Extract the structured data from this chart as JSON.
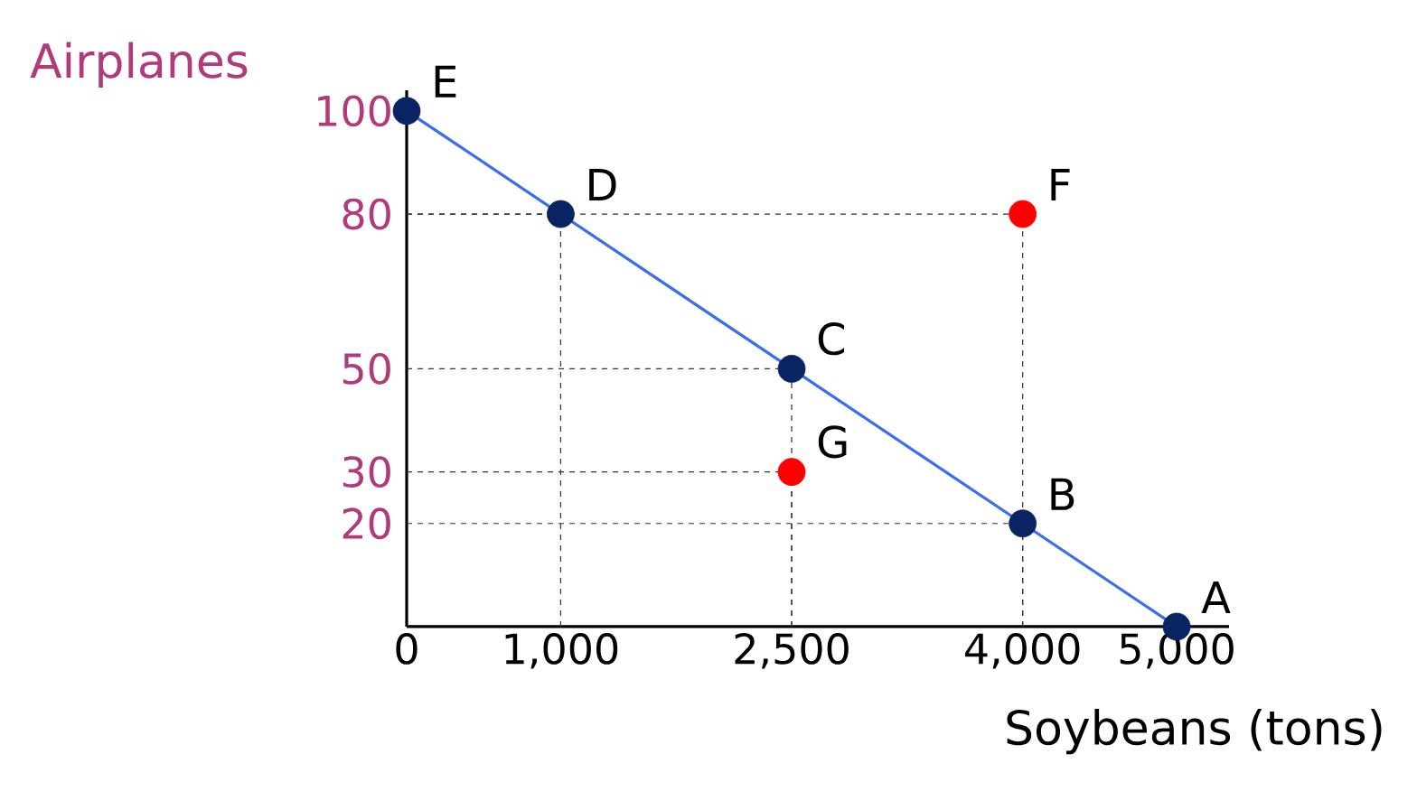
{
  "chart_data": {
    "type": "line",
    "xlabel": "Soybeans (tons)",
    "ylabel": "Airplanes",
    "xlim": [
      0,
      5340
    ],
    "ylim": [
      0,
      104
    ],
    "xticks": [
      0,
      {
        "value": 1000,
        "label": "1,000"
      },
      {
        "value": 2500,
        "label": "2,500"
      },
      {
        "value": 4000,
        "label": "4,000"
      },
      {
        "value": 5000,
        "label": "5,000"
      }
    ],
    "yticks": [
      20,
      30,
      50,
      80,
      100
    ],
    "series": [
      {
        "color": "#3b6df0",
        "marker": "none",
        "x": [
          0,
          1000,
          2500,
          4000,
          5000
        ],
        "values": [
          100,
          80,
          50,
          20,
          0
        ]
      },
      {
        "type": "scatter",
        "color": "#0a2463",
        "marker": "circle",
        "x": [
          0,
          1000,
          2500,
          4000,
          5000
        ],
        "values": [
          100,
          80,
          50,
          20,
          0
        ]
      },
      {
        "type": "scatter",
        "color": "#ff0000",
        "marker": "circle",
        "x": [
          4000,
          2500
        ],
        "values": [
          80,
          30
        ]
      }
    ],
    "annotations": [
      {
        "text": "A",
        "x": 5000,
        "y": 0
      },
      {
        "text": "B",
        "x": 4000,
        "y": 20
      },
      {
        "text": "C",
        "x": 2500,
        "y": 50
      },
      {
        "text": "D",
        "x": 1000,
        "y": 80
      },
      {
        "text": "E",
        "x": 0,
        "y": 100
      },
      {
        "text": "F",
        "x": 4000,
        "y": 80
      },
      {
        "text": "G",
        "x": 2500,
        "y": 30
      }
    ],
    "grid": true
  }
}
